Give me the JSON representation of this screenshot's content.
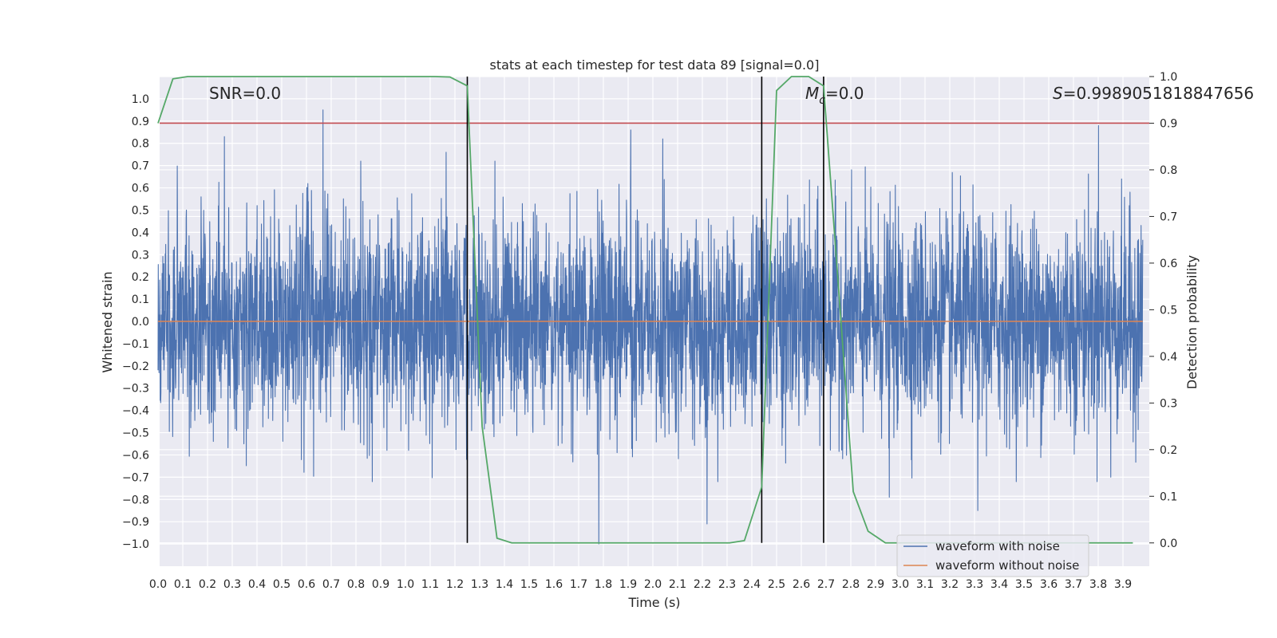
{
  "chart_data": {
    "type": "line",
    "title": "stats at each timestep for test data 89 [signal=0.0]",
    "xlabel": "Time (s)",
    "ylabel": "Whitened strain",
    "y2label": "Detection probability",
    "xlim": [
      0.0,
      4.0
    ],
    "ylim": [
      -1.1,
      1.1
    ],
    "y2lim": [
      -0.05,
      1.0
    ],
    "xticks": [
      "0.0",
      "0.1",
      "0.2",
      "0.3",
      "0.4",
      "0.5",
      "0.6",
      "0.7",
      "0.8",
      "0.9",
      "1.0",
      "1.1",
      "1.2",
      "1.3",
      "1.4",
      "1.5",
      "1.6",
      "1.7",
      "1.8",
      "1.9",
      "2.0",
      "2.1",
      "2.2",
      "2.3",
      "2.4",
      "2.5",
      "2.6",
      "2.7",
      "2.8",
      "2.9",
      "3.0",
      "3.1",
      "3.2",
      "3.3",
      "3.4",
      "3.5",
      "3.6",
      "3.7",
      "3.8",
      "3.9"
    ],
    "yticks": [
      "1.0",
      "0.9",
      "0.8",
      "0.7",
      "0.6",
      "0.5",
      "0.4",
      "0.3",
      "0.2",
      "0.1",
      "0.0",
      "−0.1",
      "−0.2",
      "−0.3",
      "−0.4",
      "−0.5",
      "−0.6",
      "−0.7",
      "−0.8",
      "−0.9",
      "−1.0"
    ],
    "y2ticks": [
      "1.0",
      "0.9",
      "0.8",
      "0.7",
      "0.6",
      "0.5",
      "0.4",
      "0.3",
      "0.2",
      "0.1",
      "0.0"
    ],
    "annotations": {
      "snr": "SNR=0.0",
      "mc_symbol": "M",
      "mc_sub": "c",
      "mc_value": "=0.0",
      "s_symbol": "S",
      "s_value": "=0.9989051818847656"
    },
    "threshold_y2": 0.9,
    "vlines_x": [
      1.25,
      2.44,
      2.69
    ],
    "noise_seed": 89,
    "noise_spike_points": [
      [
        0.27,
        0.83
      ],
      [
        0.67,
        0.95
      ],
      [
        1.79,
        -1.0
      ],
      [
        1.92,
        0.86
      ],
      [
        2.05,
        0.82
      ],
      [
        2.23,
        -0.91
      ],
      [
        3.33,
        -0.85
      ],
      [
        3.82,
        0.88
      ],
      [
        3.87,
        -0.7
      ],
      [
        2.97,
        -0.79
      ],
      [
        1.17,
        0.76
      ]
    ],
    "series": [
      {
        "name": "waveform with noise",
        "color": "#4c72b0",
        "amplitude": 0.3
      },
      {
        "name": "waveform without noise",
        "color": "#dd8452",
        "y": [
          0.0,
          0.0
        ],
        "x": [
          0.0,
          4.0
        ]
      },
      {
        "name": "detection probability",
        "color": "#55a868",
        "axis": "right",
        "x": [
          0.0,
          0.06,
          0.12,
          0.18,
          1.12,
          1.18,
          1.25,
          1.31,
          1.37,
          1.43,
          2.31,
          2.37,
          2.44,
          2.5,
          2.56,
          2.63,
          2.69,
          2.75,
          2.81,
          2.87,
          2.94,
          3.0,
          3.94
        ],
        "y": [
          0.9,
          0.995,
          1.0,
          1.0,
          1.0,
          0.999,
          0.98,
          0.25,
          0.01,
          0.0,
          0.0,
          0.005,
          0.12,
          0.97,
          1.0,
          1.0,
          0.98,
          0.55,
          0.11,
          0.025,
          0.0,
          0.0,
          0.0
        ]
      }
    ],
    "legend": [
      "waveform with noise",
      "waveform without noise"
    ],
    "legend_position": "lower-right",
    "threshold_color": "#c44e52",
    "vline_color": "#000000",
    "grid": true
  }
}
